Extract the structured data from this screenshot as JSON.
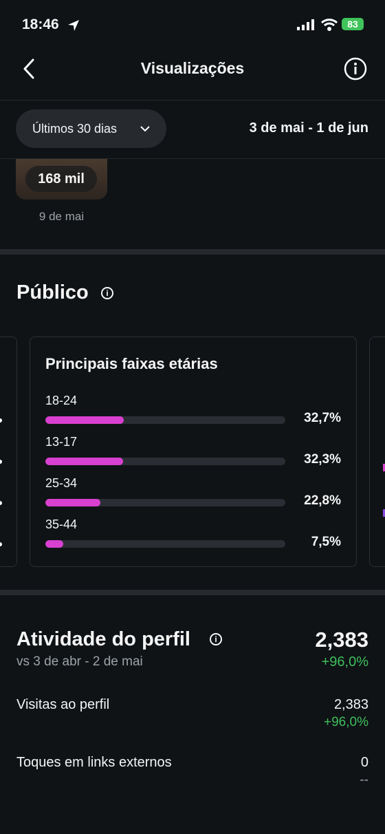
{
  "status_bar": {
    "time": "18:46",
    "battery": "83"
  },
  "header": {
    "title": "Visualizações"
  },
  "filter": {
    "period": "Últimos 30 dias",
    "range": "3 de mai - 1 de jun"
  },
  "top_post": {
    "views": "168 mil",
    "date": "9 de mai"
  },
  "audience": {
    "title": "Público",
    "card_title": "Principais faixas etárias",
    "age_ranges": [
      {
        "label": "18-24",
        "value": 32.7,
        "value_label": "32,7%"
      },
      {
        "label": "13-17",
        "value": 32.3,
        "value_label": "32,3%"
      },
      {
        "label": "25-34",
        "value": 22.8,
        "value_label": "22,8%"
      },
      {
        "label": "35-44",
        "value": 7.5,
        "value_label": "7,5%"
      }
    ]
  },
  "profile_activity": {
    "title": "Atividade do perfil",
    "total": "2,383",
    "change": "+96,0%",
    "comparison": "vs 3 de abr - 2 de mai",
    "rows": [
      {
        "label": "Visitas ao perfil",
        "value": "2,383",
        "change": "+96,0%"
      },
      {
        "label": "Toques em links externos",
        "value": "0",
        "change": "--"
      }
    ]
  }
}
